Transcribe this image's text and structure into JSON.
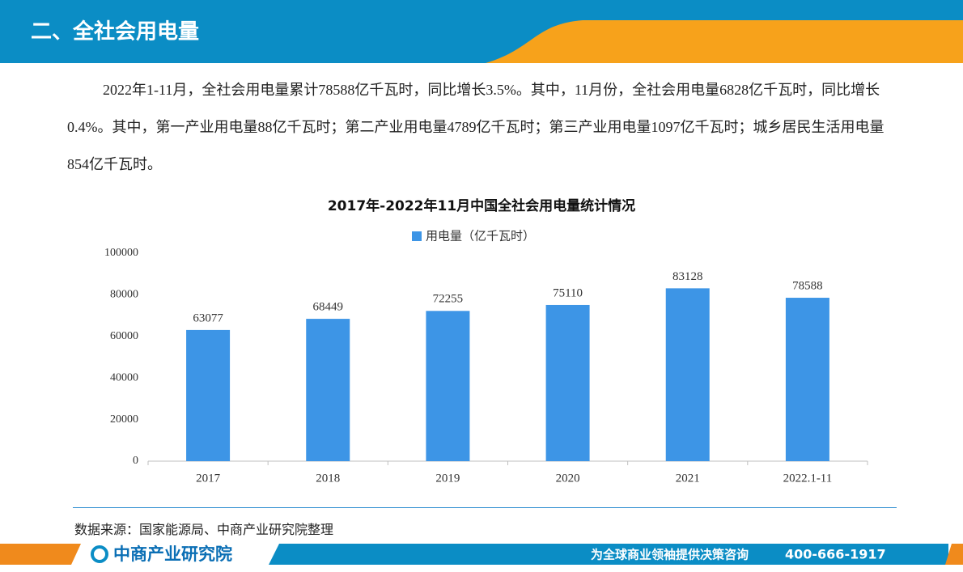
{
  "header": {
    "title": "二、全社会用电量"
  },
  "paragraph": "2022年1-11月，全社会用电量累计78588亿千瓦时，同比增长3.5%。其中，11月份，全社会用电量6828亿千瓦时，同比增长0.4%。其中，第一产业用电量88亿千瓦时；第二产业用电量4789亿千瓦时；第三产业用电量1097亿千瓦时；城乡居民生活用电量854亿千瓦时。",
  "chart_data": {
    "type": "bar",
    "title": "2017年-2022年11月中国全社会用电量统计情况",
    "categories": [
      "2017",
      "2018",
      "2019",
      "2020",
      "2021",
      "2022.1-11"
    ],
    "series": [
      {
        "name": "用电量（亿千瓦时）",
        "color": "#3d95e6",
        "values": [
          63077,
          68449,
          72255,
          75110,
          83128,
          78588
        ]
      }
    ],
    "ylim": [
      0,
      100000
    ],
    "yticks": [
      0,
      20000,
      40000,
      60000,
      80000,
      100000
    ],
    "grid": false,
    "legend": "top"
  },
  "source": "数据来源：国家能源局、中商产业研究院整理",
  "footer": {
    "brand": "中商产业研究院",
    "slogan": "为全球商业领袖提供决策咨询",
    "phone": "400-666-1917"
  }
}
